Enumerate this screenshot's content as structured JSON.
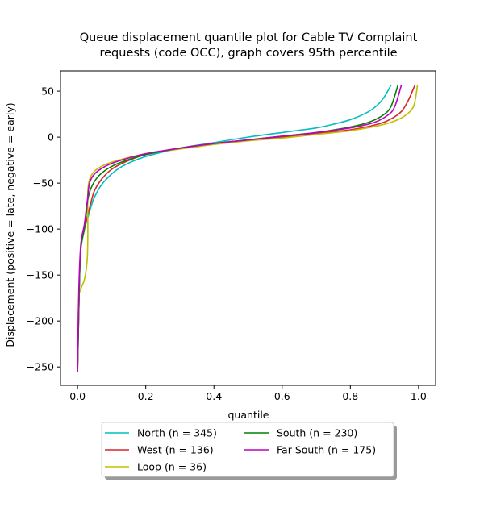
{
  "chart_data": {
    "type": "line",
    "title": [
      "Queue displacement quantile plot for Cable TV Complaint",
      "requests (code OCC), graph covers 95th percentile"
    ],
    "xlabel": "quantile",
    "ylabel": "Displacement (positive = late, negative = early)",
    "xlim": [
      -0.05,
      1.05
    ],
    "ylim": [
      -270,
      72
    ],
    "xticks": [
      0.0,
      0.2,
      0.4,
      0.6,
      0.8,
      1.0
    ],
    "xtick_labels": [
      "0.0",
      "0.2",
      "0.4",
      "0.6",
      "0.8",
      "1.0"
    ],
    "yticks": [
      50,
      0,
      -50,
      -100,
      -150,
      -200,
      -250
    ],
    "ytick_labels": [
      "50",
      "0",
      "−50",
      "−100",
      "−150",
      "−200",
      "−250"
    ],
    "grid": false,
    "legend_position": "below-center",
    "series": [
      {
        "name": "North (n = 345)",
        "color": "#00bfbf",
        "points": [
          [
            0.0,
            -255
          ],
          [
            0.003,
            -200
          ],
          [
            0.006,
            -150
          ],
          [
            0.01,
            -120
          ],
          [
            0.02,
            -100
          ],
          [
            0.03,
            -88
          ],
          [
            0.04,
            -75
          ],
          [
            0.05,
            -65
          ],
          [
            0.07,
            -52
          ],
          [
            0.1,
            -40
          ],
          [
            0.13,
            -32
          ],
          [
            0.17,
            -25
          ],
          [
            0.22,
            -19
          ],
          [
            0.3,
            -12
          ],
          [
            0.4,
            -6
          ],
          [
            0.5,
            0
          ],
          [
            0.6,
            5
          ],
          [
            0.7,
            10
          ],
          [
            0.75,
            14
          ],
          [
            0.8,
            19
          ],
          [
            0.85,
            27
          ],
          [
            0.88,
            35
          ],
          [
            0.9,
            44
          ],
          [
            0.92,
            57
          ]
        ]
      },
      {
        "name": "West (n = 136)",
        "color": "#d62728",
        "points": [
          [
            0.0,
            -255
          ],
          [
            0.003,
            -200
          ],
          [
            0.006,
            -150
          ],
          [
            0.01,
            -120
          ],
          [
            0.02,
            -100
          ],
          [
            0.03,
            -85
          ],
          [
            0.04,
            -70
          ],
          [
            0.05,
            -58
          ],
          [
            0.07,
            -46
          ],
          [
            0.1,
            -35
          ],
          [
            0.14,
            -27
          ],
          [
            0.2,
            -19
          ],
          [
            0.3,
            -12
          ],
          [
            0.4,
            -7
          ],
          [
            0.5,
            -3
          ],
          [
            0.6,
            0
          ],
          [
            0.7,
            4
          ],
          [
            0.8,
            8
          ],
          [
            0.88,
            14
          ],
          [
            0.92,
            20
          ],
          [
            0.95,
            28
          ],
          [
            0.97,
            40
          ],
          [
            0.99,
            57
          ]
        ]
      },
      {
        "name": "Loop (n = 36)",
        "color": "#bfbf00",
        "points": [
          [
            0.0,
            -255
          ],
          [
            0.003,
            -180
          ],
          [
            0.01,
            -165
          ],
          [
            0.02,
            -155
          ],
          [
            0.028,
            -135
          ],
          [
            0.03,
            -110
          ],
          [
            0.03,
            -85
          ],
          [
            0.03,
            -60
          ],
          [
            0.035,
            -46
          ],
          [
            0.05,
            -37
          ],
          [
            0.08,
            -30
          ],
          [
            0.12,
            -25
          ],
          [
            0.2,
            -18
          ],
          [
            0.3,
            -13
          ],
          [
            0.4,
            -8
          ],
          [
            0.5,
            -4
          ],
          [
            0.6,
            -1
          ],
          [
            0.7,
            3
          ],
          [
            0.8,
            7
          ],
          [
            0.9,
            14
          ],
          [
            0.95,
            21
          ],
          [
            0.98,
            30
          ],
          [
            0.99,
            40
          ],
          [
            0.997,
            57
          ]
        ]
      },
      {
        "name": "South (n = 230)",
        "color": "#008000",
        "points": [
          [
            0.0,
            -255
          ],
          [
            0.003,
            -200
          ],
          [
            0.006,
            -150
          ],
          [
            0.01,
            -120
          ],
          [
            0.02,
            -100
          ],
          [
            0.025,
            -85
          ],
          [
            0.03,
            -68
          ],
          [
            0.04,
            -55
          ],
          [
            0.06,
            -43
          ],
          [
            0.09,
            -34
          ],
          [
            0.13,
            -27
          ],
          [
            0.2,
            -19
          ],
          [
            0.3,
            -12
          ],
          [
            0.4,
            -7
          ],
          [
            0.5,
            -3
          ],
          [
            0.6,
            1
          ],
          [
            0.7,
            5
          ],
          [
            0.8,
            11
          ],
          [
            0.86,
            17
          ],
          [
            0.9,
            25
          ],
          [
            0.92,
            34
          ],
          [
            0.94,
            57
          ]
        ]
      },
      {
        "name": "Far South (n = 175)",
        "color": "#bf00bf",
        "points": [
          [
            0.0,
            -255
          ],
          [
            0.002,
            -200
          ],
          [
            0.005,
            -150
          ],
          [
            0.01,
            -115
          ],
          [
            0.02,
            -95
          ],
          [
            0.025,
            -80
          ],
          [
            0.03,
            -65
          ],
          [
            0.035,
            -50
          ],
          [
            0.05,
            -40
          ],
          [
            0.08,
            -32
          ],
          [
            0.12,
            -26
          ],
          [
            0.2,
            -18
          ],
          [
            0.3,
            -12
          ],
          [
            0.4,
            -7
          ],
          [
            0.5,
            -3
          ],
          [
            0.6,
            1
          ],
          [
            0.7,
            5
          ],
          [
            0.8,
            10
          ],
          [
            0.87,
            16
          ],
          [
            0.91,
            24
          ],
          [
            0.93,
            33
          ],
          [
            0.95,
            57
          ]
        ]
      }
    ]
  }
}
